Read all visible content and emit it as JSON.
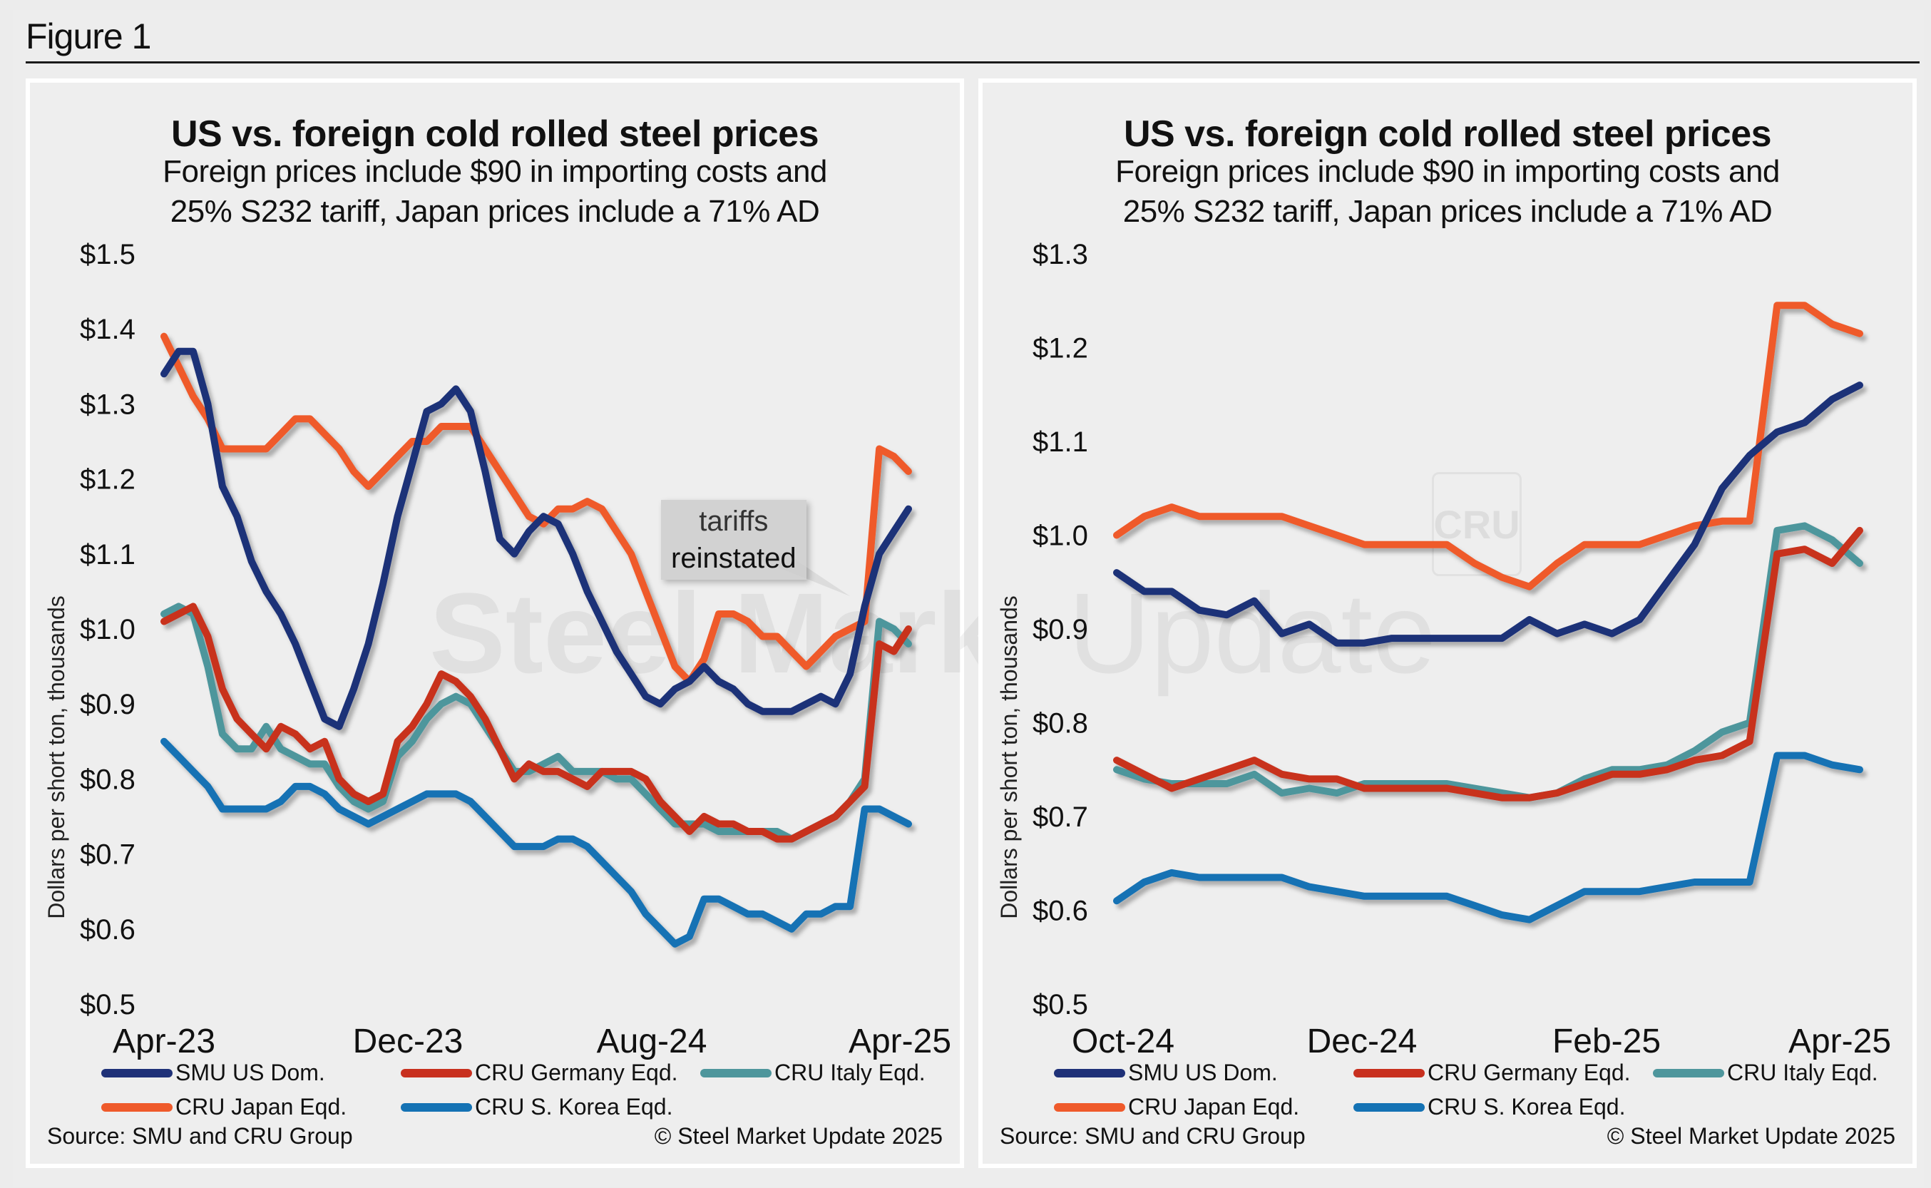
{
  "figure": {
    "title": "Figure 1"
  },
  "colors": {
    "SMU US Dom.": "#1f3178",
    "CRU Germany Eqd.": "#c8301f",
    "CRU Italy Eqd.": "#4e969c",
    "CRU Japan Eqd.": "#ef5a2b",
    "CRU S. Korea Eqd.": "#1472b4"
  },
  "panels": [
    {
      "title": "US vs. foreign cold rolled steel prices",
      "subtitle_line1": "Foreign prices include $90 in importing costs and",
      "subtitle_line2": "25% S232 tariff, Japan prices include a 71% AD",
      "source": "Source: SMU and CRU Group",
      "copyright": "© Steel Market Update 2025",
      "watermark": "Steel Market Update",
      "annotation_line1": "tariffs",
      "annotation_line2": "reinstated"
    },
    {
      "title": "US vs. foreign cold rolled steel prices",
      "subtitle_line1": "Foreign prices include $90 in importing costs and",
      "subtitle_line2": "25% S232 tariff, Japan prices include a 71% AD",
      "source": "Source: SMU and CRU Group",
      "copyright": "© Steel Market Update 2025",
      "watermark": "Update",
      "cru_mark": "CRU"
    }
  ],
  "chart_data": [
    {
      "type": "line",
      "title": "US vs. foreign cold rolled steel prices",
      "subtitle": "Foreign prices include $90 in importing costs and 25% S232 tariff, Japan prices include a 71% AD",
      "xlabel": "",
      "ylabel": "Dollars per short ton, thousands",
      "ylim": [
        0.5,
        1.5
      ],
      "yticks": [
        "$1.5",
        "$1.4",
        "$1.3",
        "$1.2",
        "$1.1",
        "$1.0",
        "$0.9",
        "$0.8",
        "$0.7",
        "$0.6",
        "$0.5"
      ],
      "ytick_values": [
        1.5,
        1.4,
        1.3,
        1.2,
        1.1,
        1.0,
        0.9,
        0.8,
        0.7,
        0.6,
        0.5
      ],
      "xticks": [
        "Apr-23",
        "Dec-23",
        "Aug-24",
        "Apr-25"
      ],
      "x_range": [
        "Apr-23",
        "Apr-25"
      ],
      "x_interval": "biweekly",
      "grid": false,
      "legend": "bottom",
      "annotation": "tariffs reinstated",
      "series": [
        {
          "name": "SMU US Dom.",
          "values": [
            1.34,
            1.37,
            1.37,
            1.3,
            1.19,
            1.15,
            1.09,
            1.05,
            1.02,
            0.98,
            0.93,
            0.88,
            0.87,
            0.92,
            0.98,
            1.06,
            1.15,
            1.22,
            1.29,
            1.3,
            1.32,
            1.29,
            1.21,
            1.12,
            1.1,
            1.13,
            1.15,
            1.14,
            1.1,
            1.05,
            1.01,
            0.97,
            0.94,
            0.91,
            0.9,
            0.92,
            0.93,
            0.95,
            0.93,
            0.92,
            0.9,
            0.89,
            0.89,
            0.89,
            0.9,
            0.91,
            0.9,
            0.94,
            1.03,
            1.1,
            1.13,
            1.16
          ]
        },
        {
          "name": "CRU Germany Eqd.",
          "values": [
            1.01,
            1.02,
            1.03,
            0.99,
            0.92,
            0.88,
            0.86,
            0.84,
            0.87,
            0.86,
            0.84,
            0.85,
            0.8,
            0.78,
            0.77,
            0.78,
            0.85,
            0.87,
            0.9,
            0.94,
            0.93,
            0.91,
            0.88,
            0.84,
            0.8,
            0.82,
            0.81,
            0.81,
            0.8,
            0.79,
            0.81,
            0.81,
            0.81,
            0.8,
            0.77,
            0.75,
            0.73,
            0.75,
            0.74,
            0.74,
            0.73,
            0.73,
            0.72,
            0.72,
            0.73,
            0.74,
            0.75,
            0.77,
            0.79,
            0.98,
            0.97,
            1.0
          ]
        },
        {
          "name": "CRU Italy Eqd.",
          "values": [
            1.02,
            1.03,
            1.02,
            0.95,
            0.86,
            0.84,
            0.84,
            0.87,
            0.84,
            0.83,
            0.82,
            0.82,
            0.79,
            0.77,
            0.76,
            0.77,
            0.83,
            0.85,
            0.88,
            0.9,
            0.91,
            0.9,
            0.87,
            0.84,
            0.81,
            0.81,
            0.82,
            0.83,
            0.81,
            0.81,
            0.81,
            0.8,
            0.8,
            0.78,
            0.76,
            0.74,
            0.74,
            0.74,
            0.73,
            0.73,
            0.73,
            0.73,
            0.73,
            0.72,
            0.73,
            0.74,
            0.75,
            0.77,
            0.8,
            1.01,
            1.0,
            0.98
          ]
        },
        {
          "name": "CRU Japan Eqd.",
          "values": [
            1.39,
            1.35,
            1.31,
            1.28,
            1.24,
            1.24,
            1.24,
            1.24,
            1.26,
            1.28,
            1.28,
            1.26,
            1.24,
            1.21,
            1.19,
            1.21,
            1.23,
            1.25,
            1.25,
            1.27,
            1.27,
            1.27,
            1.24,
            1.21,
            1.18,
            1.15,
            1.14,
            1.16,
            1.16,
            1.17,
            1.16,
            1.13,
            1.1,
            1.05,
            1.0,
            0.95,
            0.93,
            0.96,
            1.02,
            1.02,
            1.01,
            0.99,
            0.99,
            0.97,
            0.95,
            0.97,
            0.99,
            1.0,
            1.01,
            1.24,
            1.23,
            1.21
          ]
        },
        {
          "name": "CRU S. Korea Eqd.",
          "values": [
            0.85,
            0.83,
            0.81,
            0.79,
            0.76,
            0.76,
            0.76,
            0.76,
            0.77,
            0.79,
            0.79,
            0.78,
            0.76,
            0.75,
            0.74,
            0.75,
            0.76,
            0.77,
            0.78,
            0.78,
            0.78,
            0.77,
            0.75,
            0.73,
            0.71,
            0.71,
            0.71,
            0.72,
            0.72,
            0.71,
            0.69,
            0.67,
            0.65,
            0.62,
            0.6,
            0.58,
            0.59,
            0.64,
            0.64,
            0.63,
            0.62,
            0.62,
            0.61,
            0.6,
            0.62,
            0.62,
            0.63,
            0.63,
            0.76,
            0.76,
            0.75,
            0.74
          ]
        }
      ]
    },
    {
      "type": "line",
      "title": "US vs. foreign cold rolled steel prices",
      "subtitle": "Foreign prices include $90 in importing costs and 25% S232 tariff, Japan prices include a 71% AD",
      "xlabel": "",
      "ylabel": "Dollars per short ton, thousands",
      "ylim": [
        0.5,
        1.3
      ],
      "yticks": [
        "$1.3",
        "$1.2",
        "$1.1",
        "$1.0",
        "$0.9",
        "$0.8",
        "$0.7",
        "$0.6",
        "$0.5"
      ],
      "ytick_values": [
        1.3,
        1.2,
        1.1,
        1.0,
        0.9,
        0.8,
        0.7,
        0.6,
        0.5
      ],
      "xticks": [
        "Oct-24",
        "Dec-24",
        "Feb-25",
        "Apr-25"
      ],
      "x_range": [
        "Oct-24",
        "Apr-25"
      ],
      "x_interval": "weekly",
      "grid": false,
      "legend": "bottom",
      "series": [
        {
          "name": "SMU US Dom.",
          "values": [
            0.96,
            0.94,
            0.94,
            0.92,
            0.915,
            0.93,
            0.895,
            0.905,
            0.885,
            0.885,
            0.89,
            0.89,
            0.89,
            0.89,
            0.89,
            0.91,
            0.895,
            0.905,
            0.895,
            0.91,
            0.95,
            0.99,
            1.05,
            1.085,
            1.11,
            1.12,
            1.145,
            1.16
          ]
        },
        {
          "name": "CRU Germany Eqd.",
          "values": [
            0.76,
            0.745,
            0.73,
            0.74,
            0.75,
            0.76,
            0.745,
            0.74,
            0.74,
            0.73,
            0.73,
            0.73,
            0.73,
            0.725,
            0.72,
            0.72,
            0.725,
            0.735,
            0.745,
            0.745,
            0.75,
            0.76,
            0.765,
            0.78,
            0.98,
            0.985,
            0.97,
            1.005
          ]
        },
        {
          "name": "CRU Italy Eqd.",
          "values": [
            0.75,
            0.74,
            0.735,
            0.735,
            0.735,
            0.745,
            0.725,
            0.73,
            0.725,
            0.735,
            0.735,
            0.735,
            0.735,
            0.73,
            0.725,
            0.72,
            0.725,
            0.74,
            0.75,
            0.75,
            0.755,
            0.77,
            0.79,
            0.8,
            1.005,
            1.01,
            0.995,
            0.97
          ]
        },
        {
          "name": "CRU Japan Eqd.",
          "values": [
            1.0,
            1.02,
            1.03,
            1.02,
            1.02,
            1.02,
            1.02,
            1.01,
            1.0,
            0.99,
            0.99,
            0.99,
            0.99,
            0.97,
            0.955,
            0.945,
            0.97,
            0.99,
            0.99,
            0.99,
            1.0,
            1.01,
            1.015,
            1.015,
            1.245,
            1.245,
            1.225,
            1.215
          ]
        },
        {
          "name": "CRU S. Korea Eqd.",
          "values": [
            0.61,
            0.63,
            0.64,
            0.635,
            0.635,
            0.635,
            0.635,
            0.625,
            0.62,
            0.615,
            0.615,
            0.615,
            0.615,
            0.605,
            0.595,
            0.59,
            0.605,
            0.62,
            0.62,
            0.62,
            0.625,
            0.63,
            0.63,
            0.63,
            0.765,
            0.765,
            0.755,
            0.75
          ]
        }
      ]
    }
  ]
}
